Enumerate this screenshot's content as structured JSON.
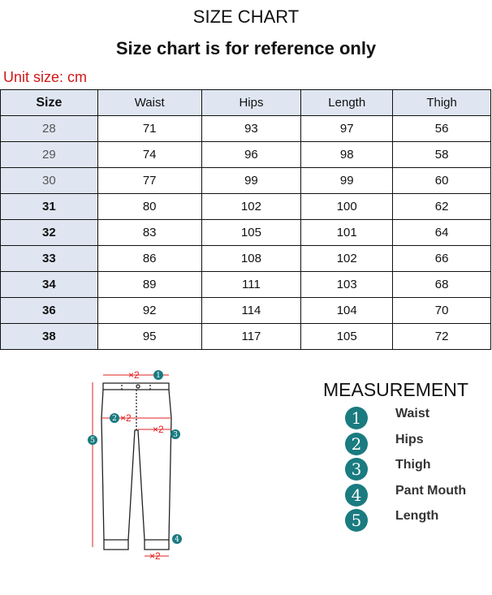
{
  "title": "SIZE CHART",
  "subtitle": "Size chart is for reference only",
  "unit_label": "Unit size: cm",
  "table": {
    "headers": [
      "Size",
      "Waist",
      "Hips",
      "Length",
      "Thigh"
    ],
    "rows": [
      [
        "28",
        "71",
        "93",
        "97",
        "56"
      ],
      [
        "29",
        "74",
        "96",
        "98",
        "58"
      ],
      [
        "30",
        "77",
        "99",
        "99",
        "60"
      ],
      [
        "31",
        "80",
        "102",
        "100",
        "62"
      ],
      [
        "32",
        "83",
        "105",
        "101",
        "64"
      ],
      [
        "33",
        "86",
        "108",
        "102",
        "66"
      ],
      [
        "34",
        "89",
        "111",
        "103",
        "68"
      ],
      [
        "36",
        "92",
        "114",
        "104",
        "70"
      ],
      [
        "38",
        "95",
        "117",
        "105",
        "72"
      ]
    ]
  },
  "measurement": {
    "title": "MEASUREMENT",
    "items": [
      {
        "num": "1",
        "label": "Waist"
      },
      {
        "num": "2",
        "label": "Hips"
      },
      {
        "num": "3",
        "label": "Thigh"
      },
      {
        "num": "4",
        "label": "Pant Mouth"
      },
      {
        "num": "5",
        "label": "Length"
      }
    ]
  },
  "diagram": {
    "multiplier": "×2"
  },
  "colors": {
    "unit": "#d01818",
    "header_bg": "#dfe6f2",
    "badge": "#1a7b80",
    "arrow": "#e02020"
  }
}
